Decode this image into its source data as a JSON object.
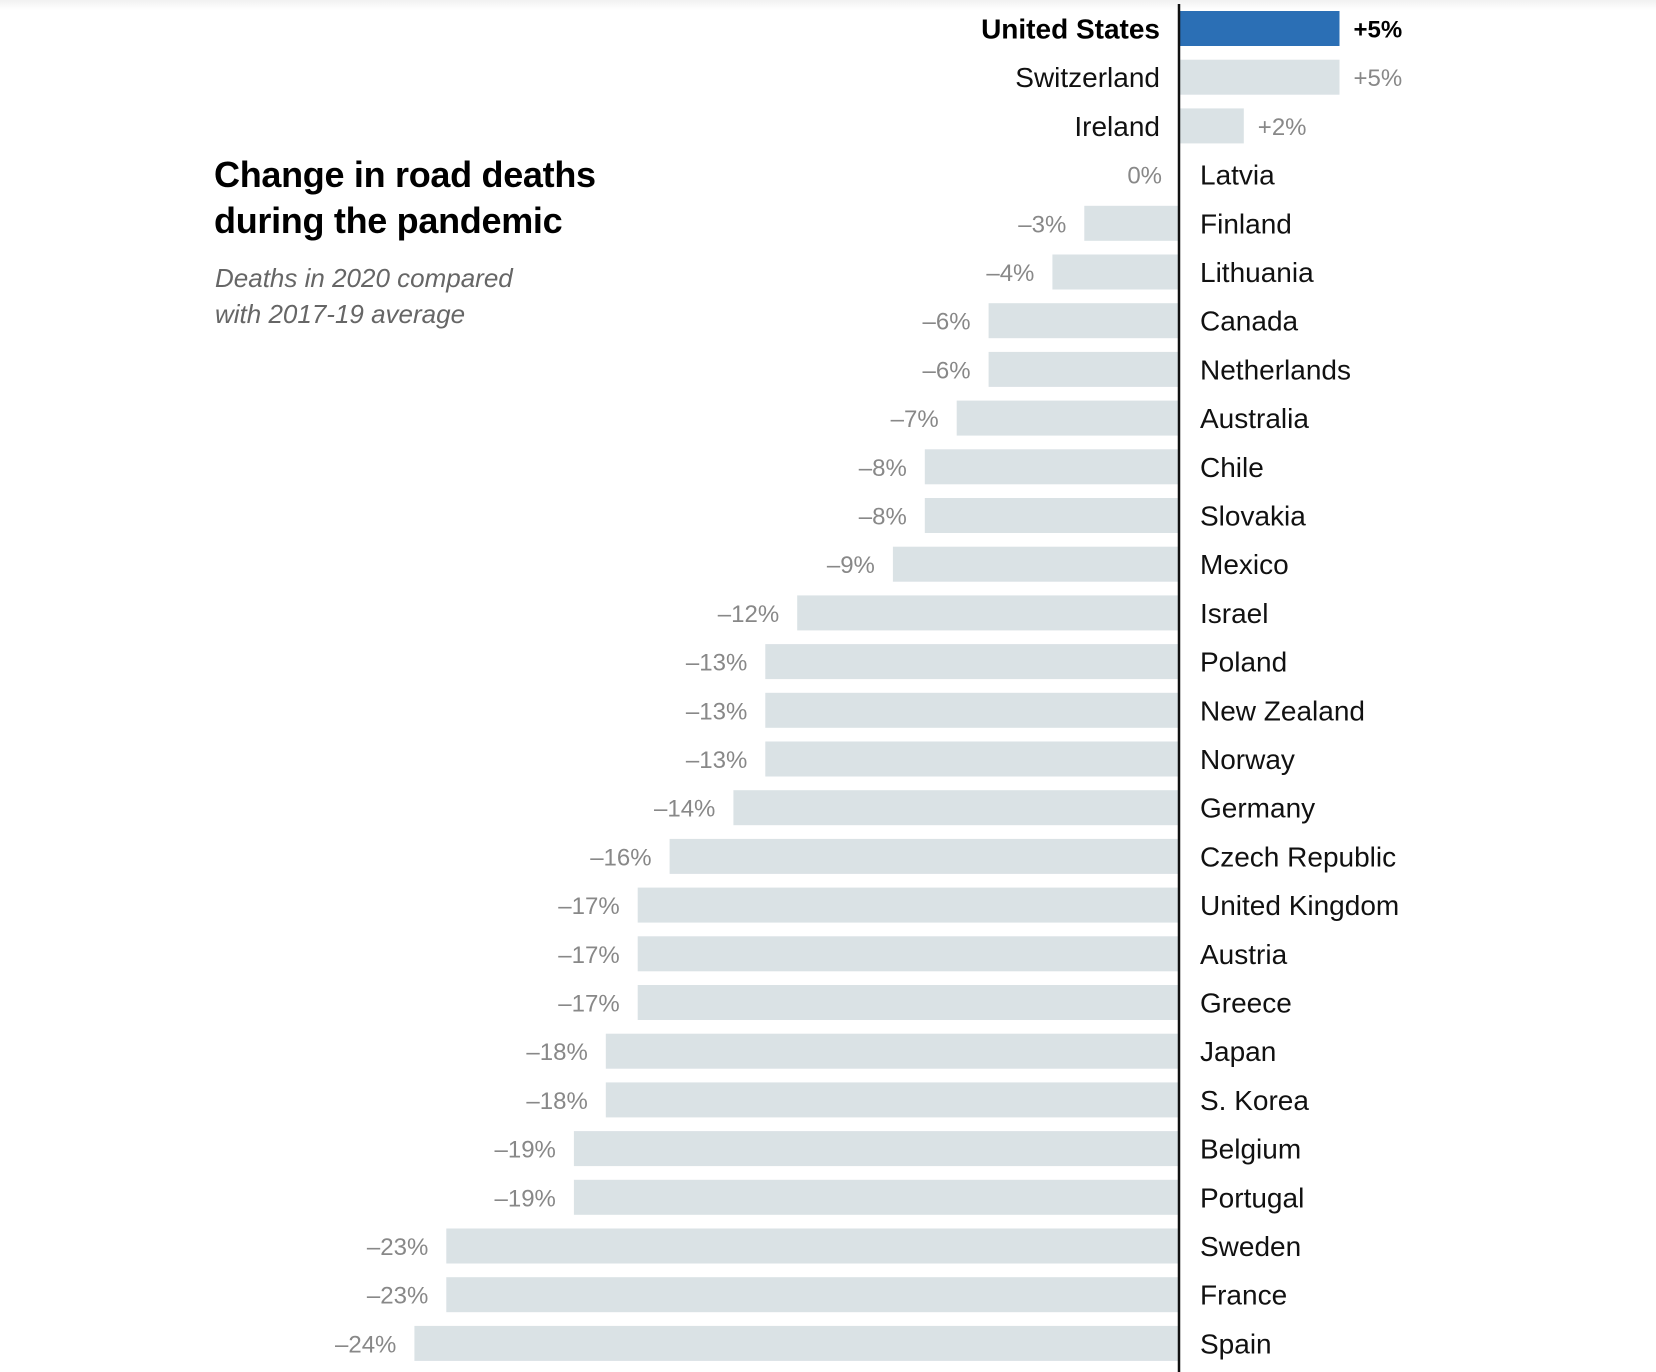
{
  "chart_data": {
    "type": "bar",
    "orientation": "horizontal",
    "title": "Change in road deaths during the pandemic",
    "title_lines": [
      "Change in road deaths",
      "during the pandemic"
    ],
    "subtitle": "Deaths in 2020 compared with 2017-19 average",
    "subtitle_lines": [
      "Deaths in 2020 compared",
      "with 2017-19 average"
    ],
    "xlabel": "",
    "ylabel": "",
    "unit": "%",
    "xlim": [
      -24,
      5
    ],
    "highlight": "United States",
    "colors": {
      "highlight": "#2b6fb5",
      "default": "#dae2e5",
      "axis": "#111111",
      "value_text": "#888888"
    },
    "categories": [
      "United States",
      "Switzerland",
      "Ireland",
      "Latvia",
      "Finland",
      "Lithuania",
      "Canada",
      "Netherlands",
      "Australia",
      "Chile",
      "Slovakia",
      "Mexico",
      "Israel",
      "Poland",
      "New Zealand",
      "Norway",
      "Germany",
      "Czech Republic",
      "United Kingdom",
      "Austria",
      "Greece",
      "Japan",
      "S. Korea",
      "Belgium",
      "Portugal",
      "Sweden",
      "France",
      "Spain"
    ],
    "values": [
      5,
      5,
      2,
      0,
      -3,
      -4,
      -6,
      -6,
      -7,
      -8,
      -8,
      -9,
      -12,
      -13,
      -13,
      -13,
      -14,
      -16,
      -17,
      -17,
      -17,
      -18,
      -18,
      -19,
      -19,
      -23,
      -23,
      -24
    ],
    "value_labels": [
      "+5%",
      "+5%",
      "+2%",
      "0%",
      "–3%",
      "–4%",
      "–6%",
      "–6%",
      "–7%",
      "–8%",
      "–8%",
      "–9%",
      "–12%",
      "–13%",
      "–13%",
      "–13%",
      "–14%",
      "–16%",
      "–17%",
      "–17%",
      "–17%",
      "–18%",
      "–18%",
      "–19%",
      "–19%",
      "–23%",
      "–23%",
      "–24%"
    ]
  }
}
